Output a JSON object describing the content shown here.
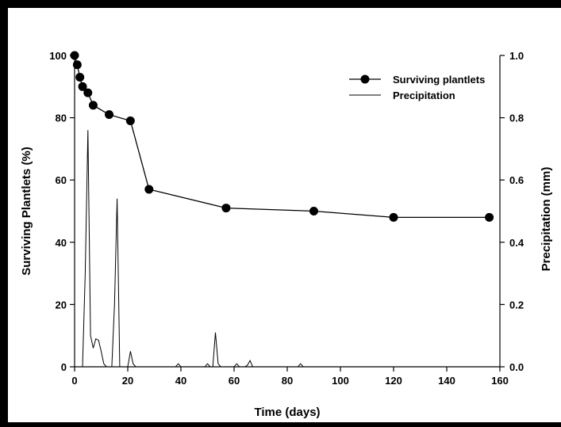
{
  "chart_data": {
    "type": "line",
    "xlabel": "Time (days)",
    "ylabel": "Surviving Plantlets (%)",
    "y2label": "Precipitation (mm)",
    "xlim": [
      0,
      160
    ],
    "ylim": [
      0,
      100
    ],
    "y2lim": [
      0,
      1.0
    ],
    "x_ticks": [
      0,
      20,
      40,
      60,
      80,
      100,
      120,
      140,
      160
    ],
    "y_ticks": [
      0,
      20,
      40,
      60,
      80,
      100
    ],
    "y2_ticks": [
      "0.0",
      "0.2",
      "0.4",
      "0.6",
      "0.8",
      "1.0"
    ],
    "legend_position": "top-right",
    "grid": false,
    "series": [
      {
        "name": "Surviving plantlets",
        "axis": "left",
        "marker": "filled-circle",
        "color": "#000000",
        "x": [
          0,
          1,
          2,
          3,
          5,
          7,
          13,
          21,
          28,
          57,
          90,
          120,
          156
        ],
        "y": [
          100,
          97,
          93,
          90,
          88,
          84,
          81,
          79,
          57,
          51,
          50,
          48,
          48
        ]
      },
      {
        "name": "Precipitation",
        "axis": "right",
        "marker": "none",
        "color": "#000000",
        "x": [
          0,
          3,
          4,
          5,
          6,
          7,
          8,
          9,
          10,
          11,
          12,
          13,
          14,
          15,
          16,
          17,
          20,
          21,
          22,
          23,
          38,
          39,
          40,
          49,
          50,
          51,
          52,
          53,
          54,
          55,
          60,
          61,
          62,
          64,
          65,
          66,
          67,
          84,
          85,
          86
        ],
        "y": [
          0,
          0,
          0.3,
          0.76,
          0.1,
          0.06,
          0.09,
          0.085,
          0.05,
          0.01,
          0.0,
          0.0,
          0.0,
          0.2,
          0.54,
          0.0,
          0.0,
          0.05,
          0.01,
          0.0,
          0.0,
          0.01,
          0.0,
          0.0,
          0.01,
          0.0,
          0.0,
          0.11,
          0.01,
          0.0,
          0.0,
          0.01,
          0.0,
          0.0,
          0.005,
          0.02,
          0.0,
          0.0,
          0.01,
          0.0
        ]
      }
    ]
  }
}
